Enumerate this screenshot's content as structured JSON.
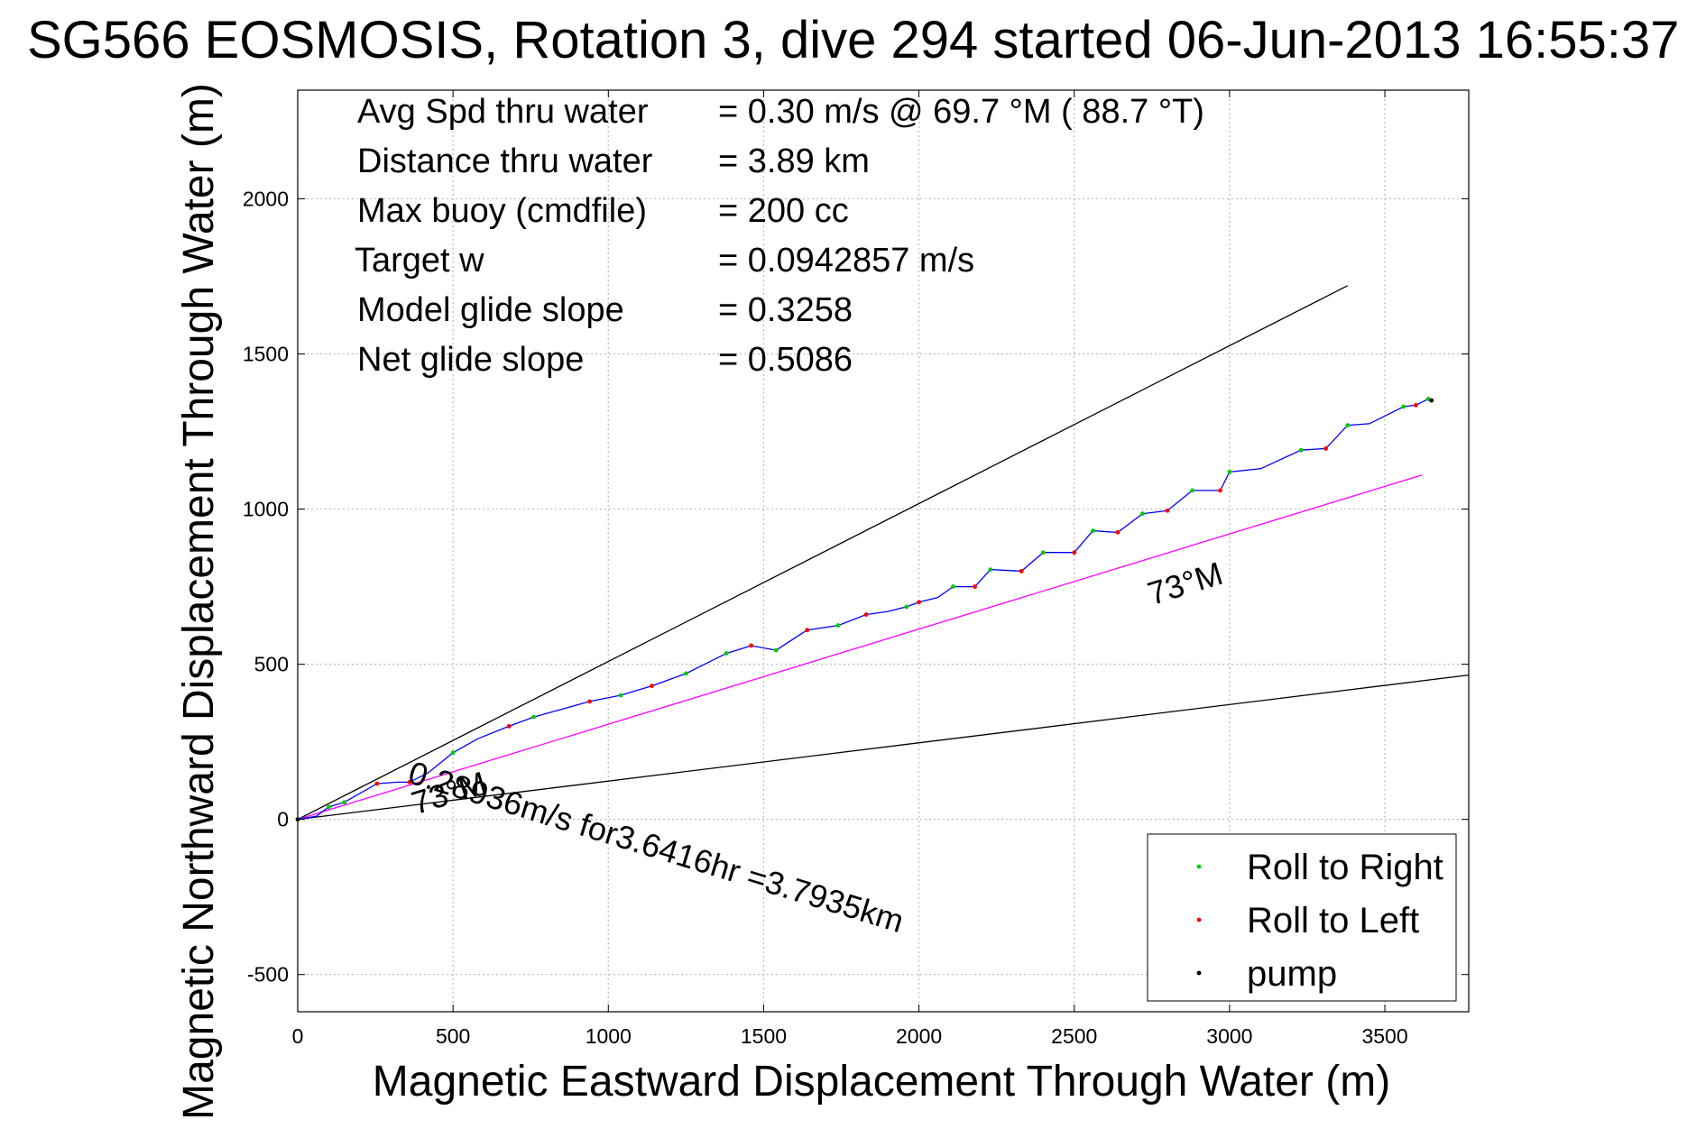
{
  "chart_data": {
    "type": "line",
    "title": "SG566 EOSMOSIS, Rotation 3, dive 294 started 06-Jun-2013 16:55:37",
    "xlabel": "Magnetic Eastward Displacement Through Water (m)",
    "ylabel": "Magnetic Northward Displacement Through Water (m)",
    "xlim": [
      0,
      3770
    ],
    "ylim": [
      -620,
      2350
    ],
    "xticks": [
      0,
      500,
      1000,
      1500,
      2000,
      2500,
      3000,
      3500
    ],
    "yticks": [
      -500,
      0,
      500,
      1000,
      1500,
      2000
    ],
    "grid": true,
    "stats": [
      {
        "label": "Avg Spd thru water",
        "value": "=  0.30 m/s @  69.7 °M ( 88.7 °T)"
      },
      {
        "label": "Distance thru water",
        "value": "=  3.89 km"
      },
      {
        "label": "Max buoy (cmdfile)",
        "value": "= 200 cc"
      },
      {
        "label": "Target w",
        "value": "= 0.0942857 m/s"
      },
      {
        "label": "Model glide slope",
        "value": "= 0.3258"
      },
      {
        "label": "Net glide slope",
        "value": "= 0.5086"
      }
    ],
    "reference_lines": [
      {
        "x": [
          0,
          3380
        ],
        "y": [
          0,
          1720
        ],
        "color": "#000000"
      },
      {
        "x": [
          0,
          3770
        ],
        "y": [
          0,
          465
        ],
        "color": "#000000"
      },
      {
        "x": [
          0,
          3620
        ],
        "y": [
          0,
          1110
        ],
        "color": "#ff00ff"
      }
    ],
    "track": {
      "color": "#0000ff",
      "x": [
        0,
        60,
        100,
        150,
        255,
        320,
        360,
        420,
        500,
        580,
        680,
        760,
        850,
        940,
        1040,
        1140,
        1250,
        1380,
        1460,
        1540,
        1640,
        1740,
        1830,
        1900,
        1960,
        2000,
        2060,
        2110,
        2180,
        2230,
        2330,
        2400,
        2500,
        2560,
        2640,
        2720,
        2800,
        2880,
        2970,
        3000,
        3100,
        3230,
        3310,
        3380,
        3450,
        3560,
        3600,
        3640,
        3650
      ],
      "y": [
        0,
        10,
        40,
        55,
        115,
        120,
        120,
        150,
        215,
        260,
        300,
        330,
        355,
        380,
        400,
        430,
        470,
        535,
        560,
        545,
        610,
        625,
        660,
        670,
        685,
        700,
        715,
        750,
        750,
        805,
        800,
        860,
        860,
        930,
        925,
        985,
        995,
        1060,
        1060,
        1120,
        1130,
        1190,
        1195,
        1270,
        1275,
        1330,
        1335,
        1355,
        1350
      ]
    },
    "series": [
      {
        "name": "Roll to Right",
        "color": "#00cc00",
        "x": [
          100,
          150,
          500,
          760,
          1040,
          1250,
          1380,
          1540,
          1740,
          1960,
          2110,
          2230,
          2400,
          2560,
          2720,
          2880,
          3000,
          3230,
          3380,
          3560,
          3640
        ],
        "y": [
          40,
          55,
          215,
          330,
          400,
          470,
          535,
          545,
          625,
          685,
          750,
          805,
          860,
          930,
          985,
          1060,
          1120,
          1190,
          1270,
          1330,
          1355
        ]
      },
      {
        "name": "Roll to Left",
        "color": "#ff0000",
        "x": [
          255,
          360,
          680,
          940,
          1140,
          1460,
          1640,
          1830,
          2000,
          2180,
          2330,
          2500,
          2640,
          2800,
          2970,
          3310,
          3600,
          3650
        ],
        "y": [
          115,
          120,
          300,
          380,
          430,
          560,
          610,
          660,
          700,
          750,
          800,
          860,
          925,
          995,
          1060,
          1195,
          1335,
          1350
        ]
      },
      {
        "name": "pump",
        "color": "#000000",
        "x": [
          0,
          3650
        ],
        "y": [
          0,
          1350
        ]
      }
    ],
    "annotations": [
      {
        "text": "0.28936m/s for3.6416hr =3.7935km",
        "x": 350,
        "y": 120,
        "angle": 17
      },
      {
        "text": "73°M",
        "x": 2750,
        "y": 690,
        "angle": -17
      },
      {
        "text": "73°M",
        "x": 380,
        "y": 15,
        "angle": -17
      }
    ],
    "legend": {
      "placement": "bottom-right",
      "entries": [
        "Roll to Right",
        "Roll to Left",
        "pump"
      ]
    }
  }
}
